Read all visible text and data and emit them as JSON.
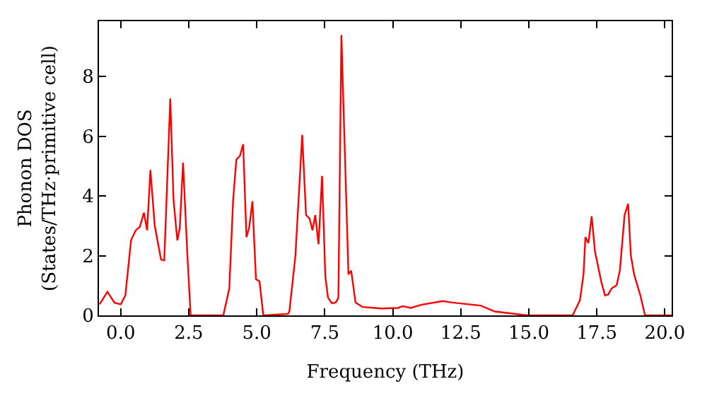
{
  "chart_data": {
    "type": "line",
    "xlabel": "Frequency (THz)",
    "ylabel": "Phonon DOS\n(States/THz·primitive cell)",
    "xlim": [
      -0.8,
      20.25
    ],
    "ylim": [
      0,
      9.85
    ],
    "xticks": [
      {
        "value": 0,
        "label": "0.0"
      },
      {
        "value": 2.5,
        "label": "2.5"
      },
      {
        "value": 5,
        "label": "5.0"
      },
      {
        "value": 7.5,
        "label": "7.5"
      },
      {
        "value": 10,
        "label": "10.0"
      },
      {
        "value": 12.5,
        "label": "12.5"
      },
      {
        "value": 15,
        "label": "15.0"
      },
      {
        "value": 17.5,
        "label": "17.5"
      },
      {
        "value": 20,
        "label": "20.0"
      }
    ],
    "yticks": [
      0,
      2,
      4,
      6,
      8
    ],
    "marker": "none",
    "line_style": "solid",
    "series": [
      {
        "color": "#ff0000",
        "x": [
          -0.78,
          -0.49,
          -0.23,
          0,
          0.17,
          0.38,
          0.55,
          0.7,
          0.85,
          0.97,
          1.09,
          1.25,
          1.48,
          1.6,
          1.82,
          1.94,
          2.08,
          2.17,
          2.29,
          2.45,
          2.57,
          3.77,
          3.99,
          4.13,
          4.25,
          4.38,
          4.5,
          4.62,
          4.72,
          4.84,
          4.97,
          5.1,
          5.24,
          6.15,
          6.2,
          6.42,
          6.67,
          6.81,
          6.94,
          7.05,
          7.15,
          7.27,
          7.4,
          7.52,
          7.62,
          7.76,
          7.9,
          8.0,
          8.11,
          8.37,
          8.47,
          8.63,
          8.89,
          9.58,
          10.19,
          10.36,
          10.66,
          11.06,
          11.84,
          12.19,
          13.23,
          13.75,
          14.96,
          16.61,
          16.88,
          17.01,
          17.08,
          17.19,
          17.31,
          17.43,
          17.66,
          17.8,
          17.92,
          18.04,
          18.23,
          18.35,
          18.52,
          18.65,
          18.75,
          18.87,
          19.1,
          19.27,
          20.25
        ],
        "values": [
          0.37,
          0.79,
          0.42,
          0.37,
          0.67,
          2.52,
          2.85,
          2.96,
          3.44,
          2.85,
          4.87,
          3.0,
          1.87,
          1.84,
          7.26,
          3.86,
          2.51,
          2.93,
          5.11,
          2.0,
          0,
          0,
          0.9,
          3.86,
          5.22,
          5.34,
          5.73,
          2.62,
          2.93,
          3.82,
          1.21,
          1.14,
          0,
          0.05,
          0.14,
          2.0,
          6.04,
          3.36,
          3.24,
          2.85,
          3.36,
          2.38,
          4.67,
          1.29,
          0.59,
          0.41,
          0.43,
          0.59,
          9.39,
          1.37,
          1.5,
          0.43,
          0.28,
          0.23,
          0.25,
          0.31,
          0.25,
          0.36,
          0.48,
          0.43,
          0.33,
          0.13,
          0,
          0,
          0.51,
          1.37,
          2.62,
          2.42,
          3.32,
          2.15,
          1.14,
          0.67,
          0.7,
          0.9,
          1.01,
          1.53,
          3.36,
          3.74,
          2.0,
          1.37,
          0.67,
          0,
          0
        ]
      }
    ]
  }
}
